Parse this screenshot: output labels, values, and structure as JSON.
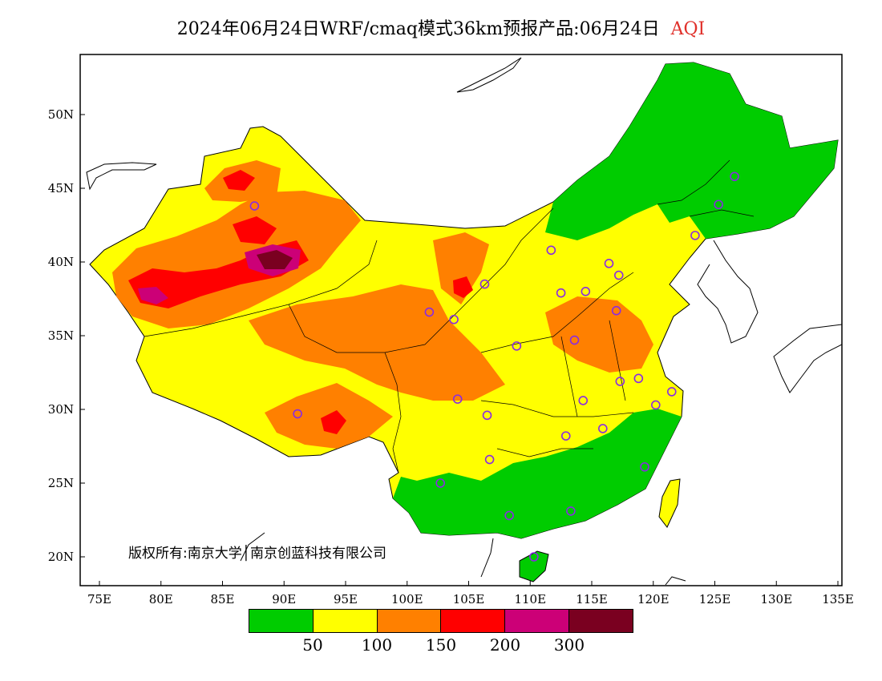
{
  "title": {
    "main": "2024年06月24日WRF/cmaq模式36km预报产品:06月24日",
    "variable": "AQI"
  },
  "copyright": "版权所有:南京大学│南京创蓝科技有限公司",
  "axes": {
    "lon_ticks": [
      "75E",
      "80E",
      "85E",
      "90E",
      "95E",
      "100E",
      "105E",
      "110E",
      "115E",
      "120E",
      "125E",
      "130E",
      "135E"
    ],
    "lat_ticks": [
      "50N",
      "45N",
      "40N",
      "35N",
      "30N",
      "25N",
      "20N"
    ]
  },
  "legend": {
    "colors": [
      "#00cc00",
      "#ffff00",
      "#ff8000",
      "#ff0000",
      "#cc0077",
      "#7a0020"
    ],
    "labels": [
      "50",
      "100",
      "150",
      "200",
      "300"
    ]
  },
  "colors": {
    "good": "#00cc00",
    "moderate": "#ffff00",
    "unhealthy_sensitive": "#ff8000",
    "unhealthy": "#ff0000",
    "very_unhealthy": "#cc0077",
    "hazardous": "#7a0020",
    "station_marker": "#8a2be2"
  },
  "map_data": {
    "type": "filled-contour-map",
    "lon_range": [
      73,
      135
    ],
    "lat_range": [
      18,
      54
    ],
    "stations": [
      [
        87.6,
        43.8
      ],
      [
        91.1,
        29.7
      ],
      [
        101.8,
        36.6
      ],
      [
        103.8,
        36.1
      ],
      [
        106.3,
        38.5
      ],
      [
        104.1,
        30.7
      ],
      [
        106.5,
        29.6
      ],
      [
        106.7,
        26.6
      ],
      [
        102.7,
        25.0
      ],
      [
        108.3,
        22.8
      ],
      [
        110.3,
        20.0
      ],
      [
        113.3,
        23.1
      ],
      [
        112.9,
        28.2
      ],
      [
        115.9,
        28.7
      ],
      [
        114.3,
        30.6
      ],
      [
        113.6,
        34.7
      ],
      [
        108.9,
        34.3
      ],
      [
        112.5,
        37.9
      ],
      [
        111.7,
        40.8
      ],
      [
        114.5,
        38.0
      ],
      [
        116.4,
        39.9
      ],
      [
        117.2,
        39.1
      ],
      [
        117.0,
        36.7
      ],
      [
        117.3,
        31.9
      ],
      [
        118.8,
        32.1
      ],
      [
        120.2,
        30.3
      ],
      [
        121.5,
        31.2
      ],
      [
        119.3,
        26.1
      ],
      [
        123.4,
        41.8
      ],
      [
        125.3,
        43.9
      ],
      [
        126.6,
        45.8
      ]
    ]
  }
}
